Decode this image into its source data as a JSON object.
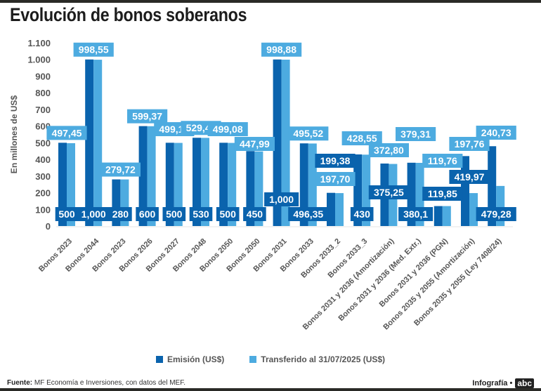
{
  "title": "Evolución de bonos soberanos",
  "legend": {
    "series1": "Emisión (US$)",
    "series2": "Transferido al 31/07/2025 (US$)"
  },
  "footer": {
    "source_label": "Fuente:",
    "source_text": "MF Economía e Inversiones, con datos del MEF.",
    "credit": "Infografía •",
    "logo": "abc"
  },
  "colors": {
    "emision": "#0a63ad",
    "transferido": "#4dabe0",
    "axis_text": "#555555"
  },
  "chart_data": {
    "type": "bar",
    "title": "Evolución de bonos soberanos",
    "xlabel": "",
    "ylabel": "En millones de US$",
    "ylim": [
      0,
      1100
    ],
    "yticks": [
      0,
      100,
      200,
      300,
      400,
      500,
      600,
      700,
      800,
      900,
      1000,
      1100
    ],
    "ytick_labels": [
      "0",
      "100",
      "200",
      "300",
      "400",
      "500",
      "600",
      "700",
      "800",
      "900",
      "1.000",
      "1.100"
    ],
    "grid": false,
    "legend_position": "bottom-center",
    "categories": [
      "Bonos 2023",
      "Bonos 2044",
      "Bonos 2023",
      "Bonos 2026",
      "Bonos 2027",
      "Bonos 2048",
      "Bonos 2050",
      "Bonos 2050",
      "Bonos 2031",
      "Bonos 2033",
      "Bonos 2033_2",
      "Bonos 2033_3",
      "Bonos 2031 y 2036 (Amortización)",
      "Bonos 2031 y 2036 (Med. Extr.)",
      "Bonos 2031 y 2036 (PGN)",
      "Bonos 2035 y 2055 (Amortización)",
      "Bonos 2035 y 2055 (Ley 7408/24)"
    ],
    "series": [
      {
        "name": "Emisión (US$)",
        "values": [
          500,
          1000,
          280,
          600,
          500,
          530,
          500,
          450,
          1000,
          496.35,
          199.38,
          430,
          375.25,
          380.1,
          119.85,
          419.97,
          479.28
        ],
        "labels": [
          "500",
          "1,000",
          "280",
          "600",
          "500",
          "530",
          "500",
          "450",
          "1,000",
          "496,35",
          "199,38",
          "430",
          "375,25",
          "380,1",
          "119,85",
          "419,97",
          "479,28"
        ]
      },
      {
        "name": "Transferido al 31/07/2025 (US$)",
        "values": [
          497.45,
          998.55,
          279.72,
          599.37,
          499.14,
          529.47,
          499.08,
          447.99,
          998.88,
          495.52,
          197.7,
          428.55,
          372.8,
          379.31,
          119.76,
          197.76,
          240.73
        ],
        "labels": [
          "497,45",
          "998,55",
          "279,72",
          "599,37",
          "499,14",
          "529,47",
          "499,08",
          "447,99",
          "998,88",
          "495,52",
          "197,70",
          "428,55",
          "372,80",
          "379,31",
          "119,76",
          "197,76",
          "240,73"
        ]
      }
    ]
  }
}
